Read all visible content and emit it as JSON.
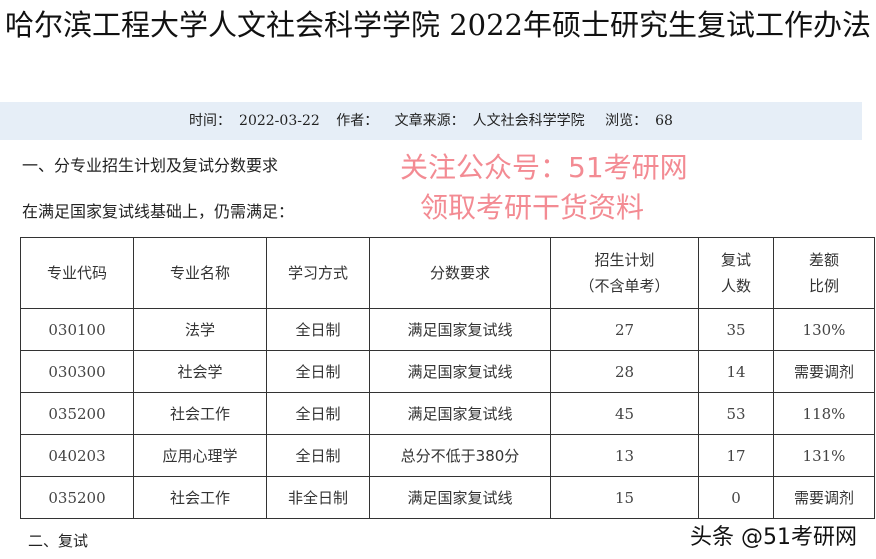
{
  "title": "哈尔滨工程大学人文社会科学学院 2022年硕士研究生复试工作办法",
  "meta": {
    "time_label": "时间：",
    "time": "2022-03-22",
    "author_label": "作者：",
    "source_label": "文章来源：",
    "source": "人文社会科学学院",
    "views_label": "浏览：",
    "views": "68"
  },
  "section1": "一、分专业招生计划及复试分数要求",
  "intro": "在满足国家复试线基础上，仍需满足：",
  "table": {
    "headers": [
      "专业代码",
      "专业名称",
      "学习方式",
      "分数要求",
      "招生计划",
      "（不含单考）",
      "复试人数",
      "差额比例"
    ],
    "rows": [
      [
        "030100",
        "法学",
        "全日制",
        "满足国家复试线",
        "27",
        "35",
        "130%"
      ],
      [
        "030300",
        "社会学",
        "全日制",
        "满足国家复试线",
        "28",
        "14",
        "需要调剂"
      ],
      [
        "035200",
        "社会工作",
        "全日制",
        "满足国家复试线",
        "45",
        "53",
        "118%"
      ],
      [
        "040203",
        "应用心理学",
        "全日制",
        "总分不低于380分",
        "13",
        "17",
        "131%"
      ],
      [
        "035200",
        "社会工作",
        "非全日制",
        "满足国家复试线",
        "15",
        "0",
        "需要调剂"
      ]
    ]
  },
  "watermark": {
    "line1": "关注公众号：51考研网",
    "line2": "领取考研干货资料"
  },
  "brand": "头条 @51考研网",
  "section2": "二、复试"
}
